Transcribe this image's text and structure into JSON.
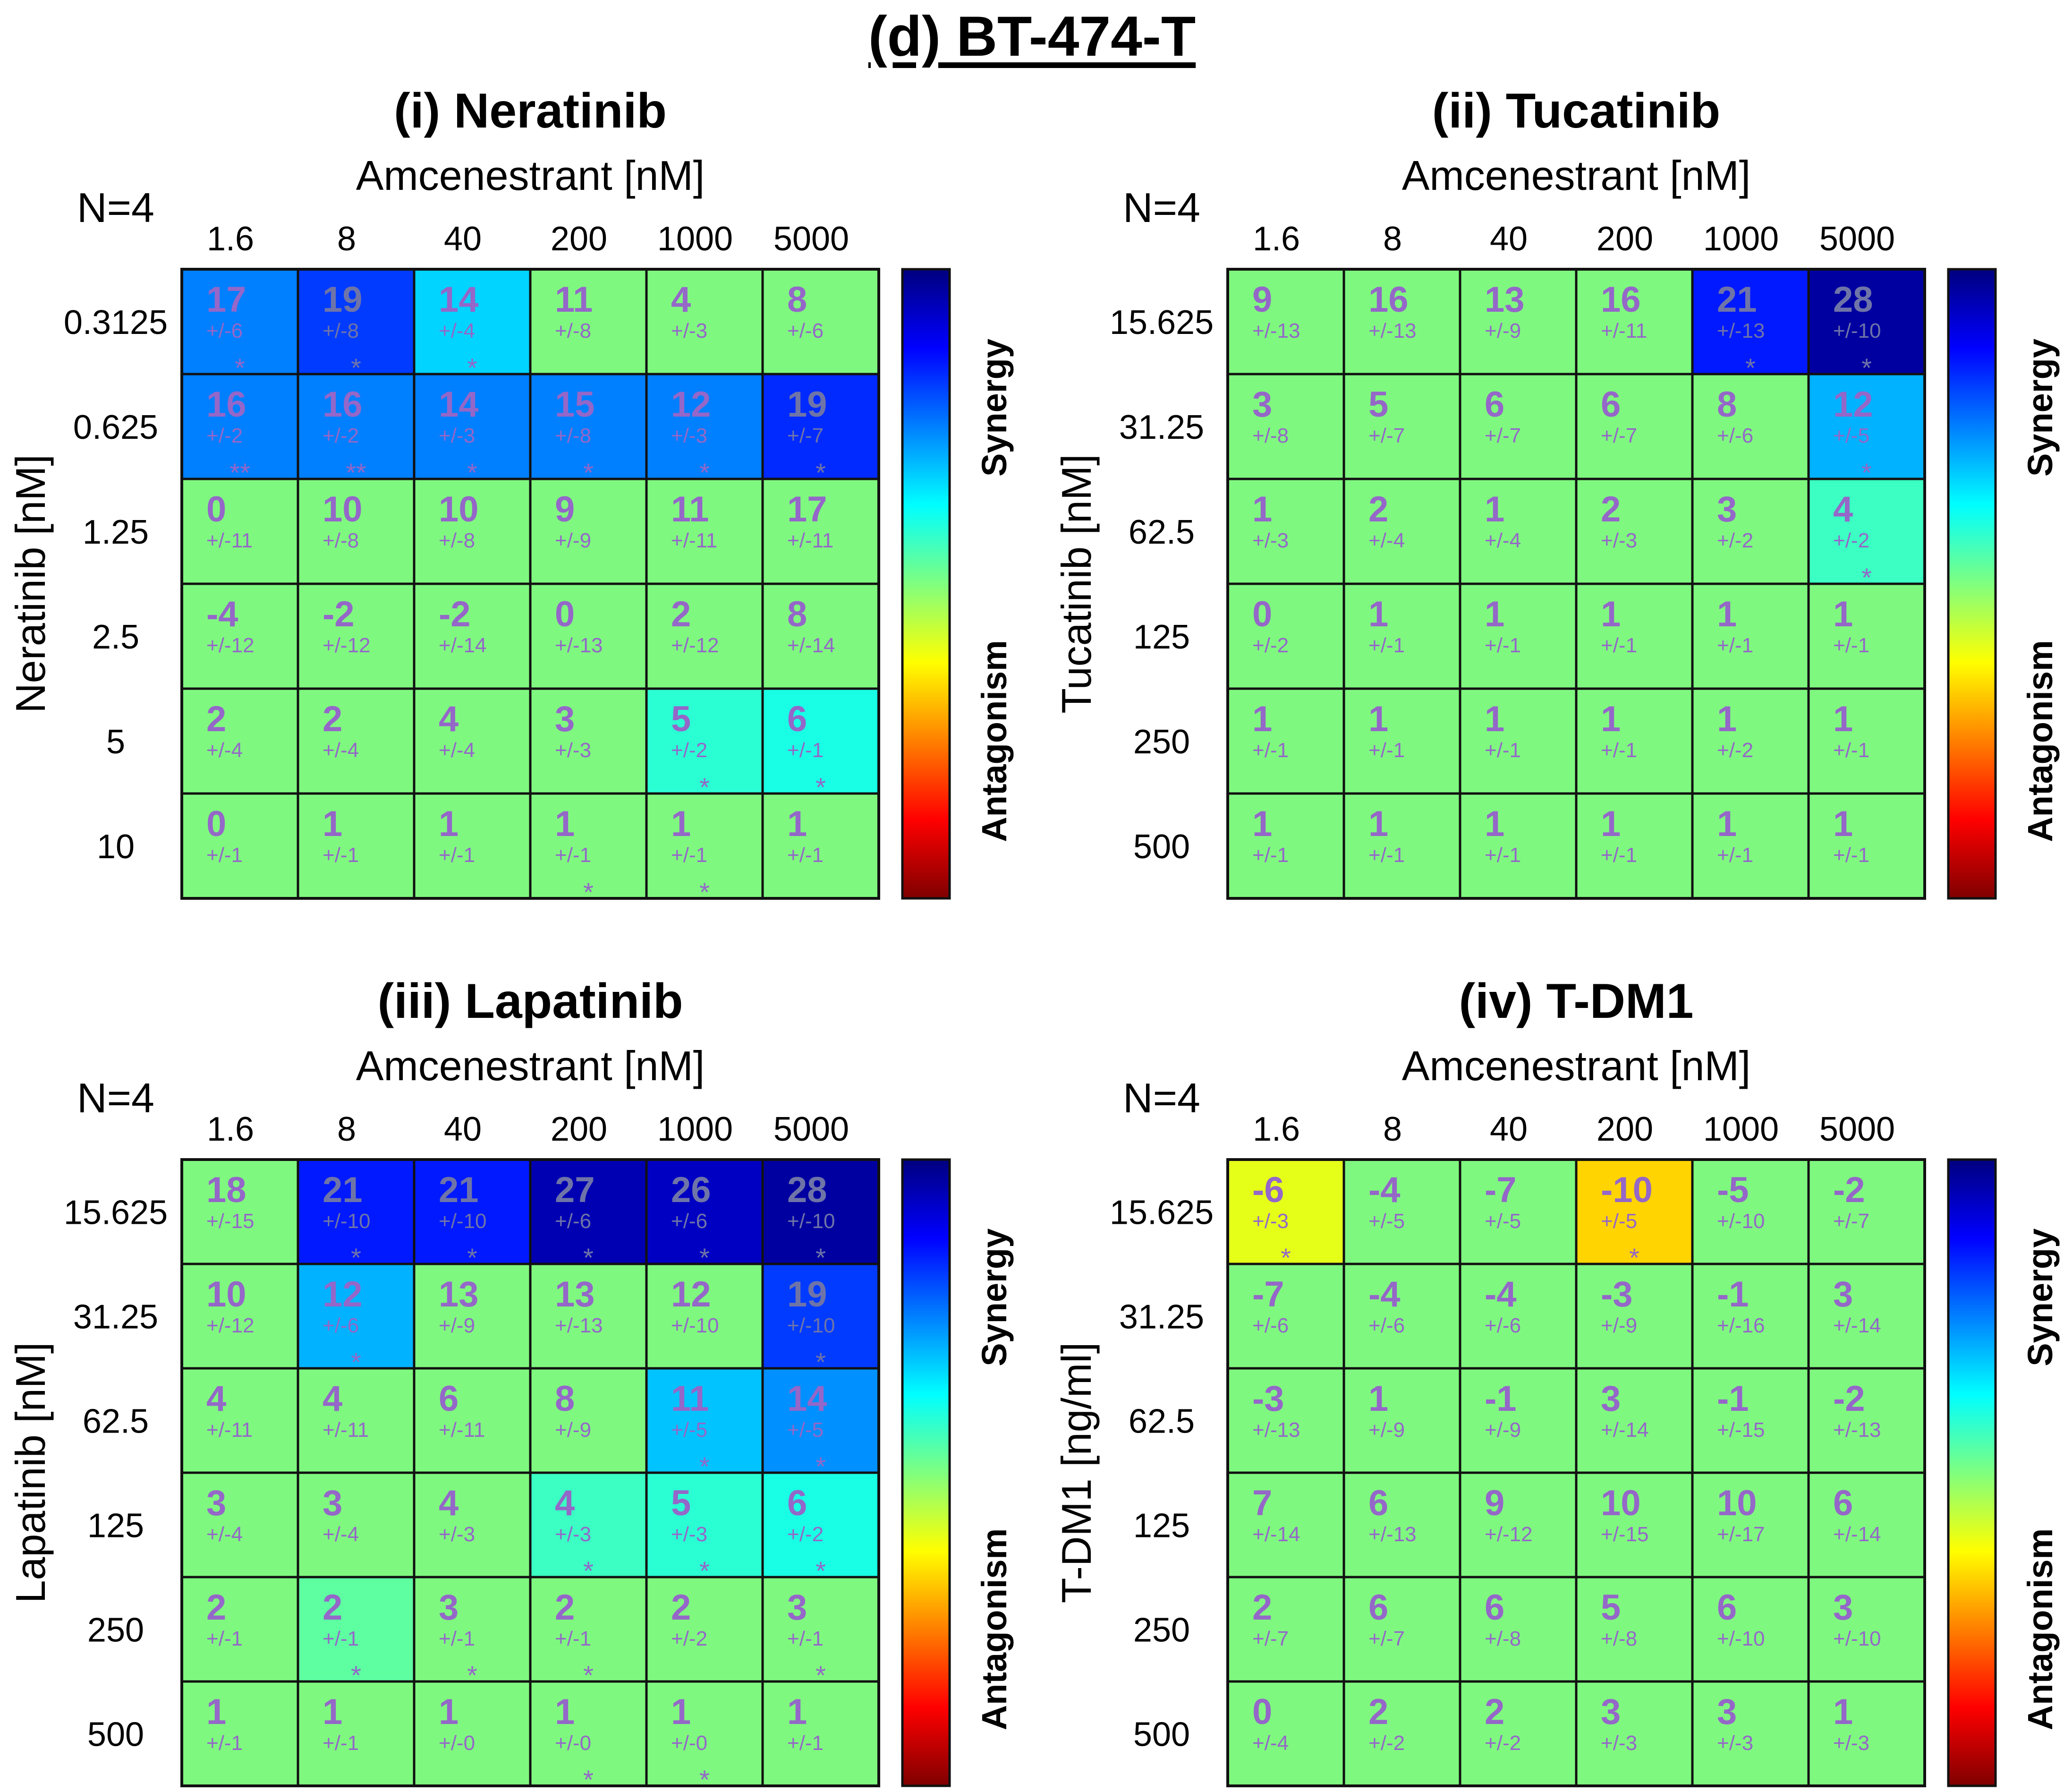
{
  "figure_title": "(d) BT-474-T",
  "colors": {
    "neutral": "#7ff87f",
    "cell_text": "#9467c8",
    "grid": "#111111"
  },
  "colorbar": {
    "top_label": "Synergy",
    "bottom_label": "Antagonism",
    "stops": [
      "#00007f",
      "#0000ff",
      "#007fff",
      "#00ffff",
      "#7fff7f",
      "#ffff00",
      "#ff7f00",
      "#ff0000",
      "#7f0000"
    ]
  },
  "chart_data": [
    {
      "type": "heatmap",
      "title": "(i) Neratinib",
      "n_label": "N=4",
      "xlabel": "Amcenestrant [nM]",
      "ylabel": "Neratinib [nM]",
      "x": [
        "1.6",
        "8",
        "40",
        "200",
        "1000",
        "5000"
      ],
      "y": [
        "0.3125",
        "0.625",
        "1.25",
        "2.5",
        "5",
        "10"
      ],
      "values": [
        [
          17,
          19,
          14,
          11,
          4,
          8
        ],
        [
          16,
          16,
          14,
          15,
          12,
          19
        ],
        [
          0,
          10,
          10,
          9,
          11,
          17
        ],
        [
          -4,
          -2,
          -2,
          0,
          2,
          8
        ],
        [
          2,
          2,
          4,
          3,
          5,
          6
        ],
        [
          0,
          1,
          1,
          1,
          1,
          1
        ]
      ],
      "errors": [
        [
          "+/-6",
          "+/-8",
          "+/-4",
          "+/-8",
          "+/-3",
          "+/-6"
        ],
        [
          "+/-2",
          "+/-2",
          "+/-3",
          "+/-8",
          "+/-3",
          "+/-7"
        ],
        [
          "+/-11",
          "+/-8",
          "+/-8",
          "+/-9",
          "+/-11",
          "+/-11"
        ],
        [
          "+/-12",
          "+/-12",
          "+/-14",
          "+/-13",
          "+/-12",
          "+/-14"
        ],
        [
          "+/-4",
          "+/-4",
          "+/-4",
          "+/-3",
          "+/-2",
          "+/-1"
        ],
        [
          "+/-1",
          "+/-1",
          "+/-1",
          "+/-1",
          "+/-1",
          "+/-1"
        ]
      ],
      "significance": [
        [
          "*",
          "*",
          "*",
          "",
          "",
          ""
        ],
        [
          "**",
          "**",
          "*",
          "*",
          "*",
          "*"
        ],
        [
          "",
          "",
          "",
          "",
          "",
          ""
        ],
        [
          "",
          "",
          "",
          "",
          "",
          ""
        ],
        [
          "",
          "",
          "",
          "",
          "*",
          "*"
        ],
        [
          "",
          "",
          "",
          "*",
          "*",
          ""
        ]
      ],
      "colored_levels": [
        [
          15,
          19,
          10,
          0,
          0,
          0
        ],
        [
          15,
          15,
          15,
          15,
          15,
          20
        ],
        [
          0,
          0,
          0,
          0,
          0,
          0
        ],
        [
          0,
          0,
          0,
          0,
          0,
          0
        ],
        [
          0,
          0,
          0,
          0,
          5,
          6
        ],
        [
          0,
          0,
          0,
          0,
          0,
          0
        ]
      ]
    },
    {
      "type": "heatmap",
      "title": "(ii) Tucatinib",
      "n_label": "N=4",
      "xlabel": "Amcenestrant [nM]",
      "ylabel": "Tucatinib [nM]",
      "x": [
        "1.6",
        "8",
        "40",
        "200",
        "1000",
        "5000"
      ],
      "y": [
        "15.625",
        "31.25",
        "62.5",
        "125",
        "250",
        "500"
      ],
      "values": [
        [
          9,
          16,
          13,
          16,
          21,
          28
        ],
        [
          3,
          5,
          6,
          6,
          8,
          12
        ],
        [
          1,
          2,
          1,
          2,
          3,
          4
        ],
        [
          0,
          1,
          1,
          1,
          1,
          1
        ],
        [
          1,
          1,
          1,
          1,
          1,
          1
        ],
        [
          1,
          1,
          1,
          1,
          1,
          1
        ]
      ],
      "errors": [
        [
          "+/-13",
          "+/-13",
          "+/-9",
          "+/-11",
          "+/-13",
          "+/-10"
        ],
        [
          "+/-8",
          "+/-7",
          "+/-7",
          "+/-7",
          "+/-6",
          "+/-5"
        ],
        [
          "+/-3",
          "+/-4",
          "+/-4",
          "+/-3",
          "+/-2",
          "+/-2"
        ],
        [
          "+/-2",
          "+/-1",
          "+/-1",
          "+/-1",
          "+/-1",
          "+/-1"
        ],
        [
          "+/-1",
          "+/-1",
          "+/-1",
          "+/-1",
          "+/-2",
          "+/-1"
        ],
        [
          "+/-1",
          "+/-1",
          "+/-1",
          "+/-1",
          "+/-1",
          "+/-1"
        ]
      ],
      "significance": [
        [
          "",
          "",
          "",
          "",
          "*",
          "*"
        ],
        [
          "",
          "",
          "",
          "",
          "",
          "*"
        ],
        [
          "",
          "",
          "",
          "",
          "",
          "*"
        ],
        [
          "",
          "",
          "",
          "",
          "",
          ""
        ],
        [
          "",
          "",
          "",
          "",
          "",
          ""
        ],
        [
          "",
          "",
          "",
          "",
          "",
          ""
        ]
      ],
      "colored_levels": [
        [
          0,
          0,
          0,
          0,
          21,
          28
        ],
        [
          0,
          0,
          0,
          0,
          0,
          12
        ],
        [
          0,
          0,
          0,
          0,
          0,
          4
        ],
        [
          0,
          0,
          0,
          0,
          0,
          0
        ],
        [
          0,
          0,
          0,
          0,
          0,
          0
        ],
        [
          0,
          0,
          0,
          0,
          0,
          0
        ]
      ]
    },
    {
      "type": "heatmap",
      "title": "(iii) Lapatinib",
      "n_label": "N=4",
      "xlabel": "Amcenestrant [nM]",
      "ylabel": "Lapatinib [nM]",
      "x": [
        "1.6",
        "8",
        "40",
        "200",
        "1000",
        "5000"
      ],
      "y": [
        "15.625",
        "31.25",
        "62.5",
        "125",
        "250",
        "500"
      ],
      "values": [
        [
          18,
          21,
          21,
          27,
          26,
          28
        ],
        [
          10,
          12,
          13,
          13,
          12,
          19
        ],
        [
          4,
          4,
          6,
          8,
          11,
          14
        ],
        [
          3,
          3,
          4,
          4,
          5,
          6
        ],
        [
          2,
          2,
          3,
          2,
          2,
          3
        ],
        [
          1,
          1,
          1,
          1,
          1,
          1
        ]
      ],
      "errors": [
        [
          "+/-15",
          "+/-10",
          "+/-10",
          "+/-6",
          "+/-6",
          "+/-10"
        ],
        [
          "+/-12",
          "+/-6",
          "+/-9",
          "+/-13",
          "+/-10",
          "+/-10"
        ],
        [
          "+/-11",
          "+/-11",
          "+/-11",
          "+/-9",
          "+/-5",
          "+/-5"
        ],
        [
          "+/-4",
          "+/-4",
          "+/-3",
          "+/-3",
          "+/-3",
          "+/-2"
        ],
        [
          "+/-1",
          "+/-1",
          "+/-1",
          "+/-1",
          "+/-2",
          "+/-1"
        ],
        [
          "+/-1",
          "+/-1",
          "+/-0",
          "+/-0",
          "+/-0",
          "+/-1"
        ]
      ],
      "significance": [
        [
          "",
          "*",
          "*",
          "*",
          "*",
          "*"
        ],
        [
          "",
          "*",
          "",
          "",
          "",
          "*"
        ],
        [
          "",
          "",
          "",
          "",
          "*",
          "*"
        ],
        [
          "",
          "",
          "",
          "*",
          "*",
          "*"
        ],
        [
          "",
          "*",
          "*",
          "*",
          "",
          "*"
        ],
        [
          "",
          "",
          "",
          "*",
          "*",
          ""
        ]
      ],
      "colored_levels": [
        [
          0,
          21,
          21,
          27,
          26,
          28
        ],
        [
          0,
          12,
          0,
          0,
          0,
          19
        ],
        [
          0,
          0,
          0,
          0,
          11,
          14
        ],
        [
          0,
          0,
          0,
          4,
          5,
          6
        ],
        [
          0,
          2,
          0,
          0,
          0,
          0
        ],
        [
          0,
          0,
          0,
          0,
          0,
          0
        ]
      ]
    },
    {
      "type": "heatmap",
      "title": "(iv) T-DM1",
      "n_label": "N=4",
      "xlabel": "Amcenestrant [nM]",
      "ylabel": "T-DM1 [ng/ml]",
      "x": [
        "1.6",
        "8",
        "40",
        "200",
        "1000",
        "5000"
      ],
      "y": [
        "15.625",
        "31.25",
        "62.5",
        "125",
        "250",
        "500"
      ],
      "values": [
        [
          -6,
          -4,
          -7,
          -10,
          -5,
          -2
        ],
        [
          -7,
          -4,
          -4,
          -3,
          -1,
          3
        ],
        [
          -3,
          1,
          -1,
          3,
          -1,
          -2
        ],
        [
          7,
          6,
          9,
          10,
          10,
          6
        ],
        [
          2,
          6,
          6,
          5,
          6,
          3
        ],
        [
          0,
          2,
          2,
          3,
          3,
          1
        ]
      ],
      "errors": [
        [
          "+/-3",
          "+/-5",
          "+/-5",
          "+/-5",
          "+/-10",
          "+/-7"
        ],
        [
          "+/-6",
          "+/-6",
          "+/-6",
          "+/-9",
          "+/-16",
          "+/-14"
        ],
        [
          "+/-13",
          "+/-9",
          "+/-9",
          "+/-14",
          "+/-15",
          "+/-13"
        ],
        [
          "+/-14",
          "+/-13",
          "+/-12",
          "+/-15",
          "+/-17",
          "+/-14"
        ],
        [
          "+/-7",
          "+/-7",
          "+/-8",
          "+/-8",
          "+/-10",
          "+/-10"
        ],
        [
          "+/-4",
          "+/-2",
          "+/-2",
          "+/-3",
          "+/-3",
          "+/-3"
        ]
      ],
      "significance": [
        [
          "*",
          "",
          "",
          "*",
          "",
          ""
        ],
        [
          "",
          "",
          "",
          "",
          "",
          ""
        ],
        [
          "",
          "",
          "",
          "",
          "",
          ""
        ],
        [
          "",
          "",
          "",
          "",
          "",
          ""
        ],
        [
          "",
          "",
          "",
          "",
          "",
          ""
        ],
        [
          "",
          "",
          "",
          "",
          "",
          ""
        ]
      ],
      "colored_levels": [
        [
          -6,
          0,
          0,
          -10,
          0,
          0
        ],
        [
          0,
          0,
          0,
          0,
          0,
          0
        ],
        [
          0,
          0,
          0,
          0,
          0,
          0
        ],
        [
          0,
          0,
          0,
          0,
          0,
          0
        ],
        [
          0,
          0,
          0,
          0,
          0,
          0
        ],
        [
          0,
          0,
          0,
          0,
          0,
          0
        ]
      ]
    }
  ]
}
